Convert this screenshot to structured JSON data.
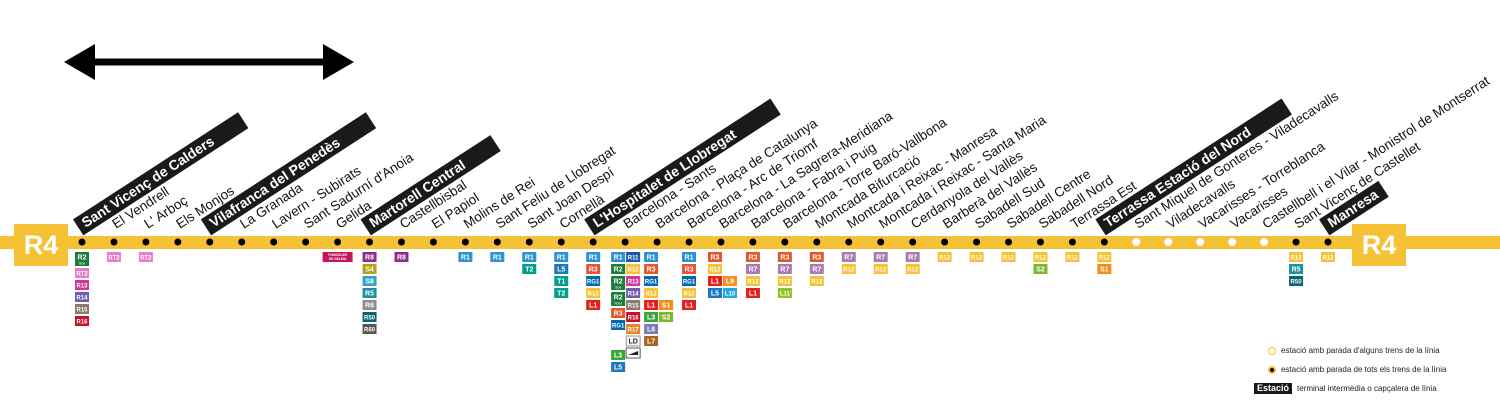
{
  "line": {
    "code": "R4",
    "color": "#f5c235"
  },
  "stations": [
    {
      "name": "Sant Vicenç de Calders",
      "terminal": true,
      "partial": false,
      "services": [
        "R2|Sud",
        "RT2",
        "R13",
        "R14",
        "R15",
        "R16"
      ]
    },
    {
      "name": "El Vendrell",
      "terminal": false,
      "partial": false,
      "services": [
        "RT2"
      ]
    },
    {
      "name": "L' Arboç",
      "terminal": false,
      "partial": false,
      "services": [
        "RT2"
      ]
    },
    {
      "name": "Els Monjos",
      "terminal": false,
      "partial": false,
      "services": []
    },
    {
      "name": "Vilafranca del Penedès",
      "terminal": true,
      "partial": false,
      "services": []
    },
    {
      "name": "La Granada",
      "terminal": false,
      "partial": false,
      "services": []
    },
    {
      "name": "Lavern - Subirats",
      "terminal": false,
      "partial": false,
      "services": []
    },
    {
      "name": "Sant Sadurní d'Anoia",
      "terminal": false,
      "partial": false,
      "services": []
    },
    {
      "name": "Gelida",
      "terminal": false,
      "partial": false,
      "services": [
        "FUNICULAR DE GELIDA"
      ]
    },
    {
      "name": "Martorell Central",
      "terminal": true,
      "partial": false,
      "services": [
        "R8",
        "S4",
        "S8",
        "R5",
        "R6",
        "R50",
        "R60"
      ]
    },
    {
      "name": "Castellbisbal",
      "terminal": false,
      "partial": false,
      "services": [
        "R8"
      ]
    },
    {
      "name": "El Papiol",
      "terminal": false,
      "partial": false,
      "services": []
    },
    {
      "name": "Molins de Rei",
      "terminal": false,
      "partial": false,
      "services": [
        "R1"
      ]
    },
    {
      "name": "Sant Feliu de Llobregat",
      "terminal": false,
      "partial": false,
      "services": [
        "R1"
      ]
    },
    {
      "name": "Sant Joan Despí",
      "terminal": false,
      "partial": false,
      "services": [
        "R1",
        "T2"
      ]
    },
    {
      "name": "Cornellà",
      "terminal": false,
      "partial": false,
      "services": [
        "R1",
        "L5",
        "T1",
        "T2"
      ]
    },
    {
      "name": "L'Hospitalet de Llobregat",
      "terminal": true,
      "partial": false,
      "services": [
        "R1",
        "R3",
        "RG1",
        "R12",
        "L1"
      ]
    },
    {
      "name": "Barcelona - Sants",
      "terminal": false,
      "partial": false,
      "services": [
        "R1",
        "R2",
        "R2|Sud",
        "R2|Nord",
        "R3",
        "RG1"
      ],
      "services2": [
        "R11",
        "R12",
        "R13",
        "R14",
        "R15",
        "R16",
        "R17",
        "LD",
        "AVE"
      ],
      "services3": [
        "L3",
        "L5"
      ]
    },
    {
      "name": "Barcelona - Plaça de Catalunya",
      "terminal": false,
      "partial": false,
      "services": [
        "R1",
        "R3",
        "RG1",
        "R12",
        "L1",
        "L3",
        "L6",
        "L7"
      ],
      "services2": [
        "S1",
        "S2"
      ]
    },
    {
      "name": "Barcelona - Arc de Triomf",
      "terminal": false,
      "partial": false,
      "services": [
        "R1",
        "R3",
        "RG1",
        "R12",
        "L1"
      ]
    },
    {
      "name": "Barcelona - La Sagrera-Meridiana",
      "terminal": false,
      "partial": false,
      "services": [
        "R3",
        "R12",
        "L1",
        "L5"
      ],
      "services2": [
        "L9",
        "L10"
      ]
    },
    {
      "name": "Barcelona - Fabra i Puig",
      "terminal": false,
      "partial": false,
      "services": [
        "R3",
        "R7",
        "R12",
        "L1"
      ]
    },
    {
      "name": "Barcelona - Torre Baró-Vallbona",
      "terminal": false,
      "partial": false,
      "services": [
        "R3",
        "R7",
        "R12",
        "L11"
      ]
    },
    {
      "name": "Montcada Bifurcació",
      "terminal": false,
      "partial": false,
      "services": [
        "R3",
        "R7",
        "R12"
      ]
    },
    {
      "name": "Montcada i Reixac - Manresa",
      "terminal": false,
      "partial": false,
      "services": [
        "R7",
        "R12"
      ]
    },
    {
      "name": "Montcada i Reixac - Santa Maria",
      "terminal": false,
      "partial": false,
      "services": [
        "R7",
        "R12"
      ]
    },
    {
      "name": "Cerdanyola del Vallès",
      "terminal": false,
      "partial": false,
      "services": [
        "R7",
        "R12"
      ]
    },
    {
      "name": "Barberà del Vallès",
      "terminal": false,
      "partial": false,
      "services": [
        "R12"
      ]
    },
    {
      "name": "Sabadell Sud",
      "terminal": false,
      "partial": false,
      "services": [
        "R12"
      ]
    },
    {
      "name": "Sabadell Centre",
      "terminal": false,
      "partial": false,
      "services": [
        "R12"
      ]
    },
    {
      "name": "Sabadell Nord",
      "terminal": false,
      "partial": false,
      "services": [
        "R12",
        "S2"
      ]
    },
    {
      "name": "Terrassa Est",
      "terminal": false,
      "partial": false,
      "services": [
        "R12"
      ]
    },
    {
      "name": "Terrassa Estació del Nord",
      "terminal": true,
      "partial": false,
      "services": [
        "R12",
        "S1"
      ]
    },
    {
      "name": "Sant Miquel de Gonteres - Viladecavalls",
      "terminal": false,
      "partial": true,
      "services": []
    },
    {
      "name": "Viladecavalls",
      "terminal": false,
      "partial": true,
      "services": []
    },
    {
      "name": "Vacarisses - Torreblanca",
      "terminal": false,
      "partial": true,
      "services": []
    },
    {
      "name": "Vacarisses",
      "terminal": false,
      "partial": true,
      "services": []
    },
    {
      "name": "Castellbell i el Vilar - Monistrol de Montserrat",
      "terminal": false,
      "partial": true,
      "services": []
    },
    {
      "name": "Sant Vicenç de Castellet",
      "terminal": false,
      "partial": false,
      "services": [
        "R12",
        "R5",
        "R50"
      ]
    },
    {
      "name": "Manresa",
      "terminal": true,
      "partial": false,
      "services": [
        "R12"
      ]
    }
  ],
  "legend": {
    "partial": "estació amb parada d'alguns trens de la línia",
    "all": "estació amb parada de tots els trens de la línia",
    "terminal_word": "Estació",
    "terminal": "terminal intermèdia o capçalera de línia"
  },
  "colors": {
    "R1": "#2a93d0",
    "R2": "#1c7c3a",
    "R3": "#e4572e",
    "R4": "#f5c235",
    "R5": "#1d92a6",
    "R6": "#8d8d8d",
    "R7": "#a87cb0",
    "R8": "#8b2d8b",
    "R11": "#1a59a6",
    "R12": "#f5c235",
    "R13": "#d6349a",
    "R14": "#6f5cb0",
    "R15": "#8c7a6a",
    "R16": "#c8102e",
    "R17": "#e8852a",
    "RT2": "#e87fc3",
    "RG1": "#0068b4",
    "R50": "#0a6677",
    "R60": "#555555",
    "S1": "#f48c1a",
    "S2": "#7ab929",
    "S4": "#b8a01a",
    "S8": "#33a2c7",
    "L1": "#e3201b",
    "L3": "#3ba53a",
    "L5": "#1e77bc",
    "L6": "#7b7cb6",
    "L7": "#a9661f",
    "L9": "#f29023",
    "L10": "#26a8df",
    "L11": "#8fc32a",
    "T1": "#00a08a",
    "T2": "#00a08a",
    "LD": "#f2f2f2",
    "AVE": "#ffffff"
  }
}
